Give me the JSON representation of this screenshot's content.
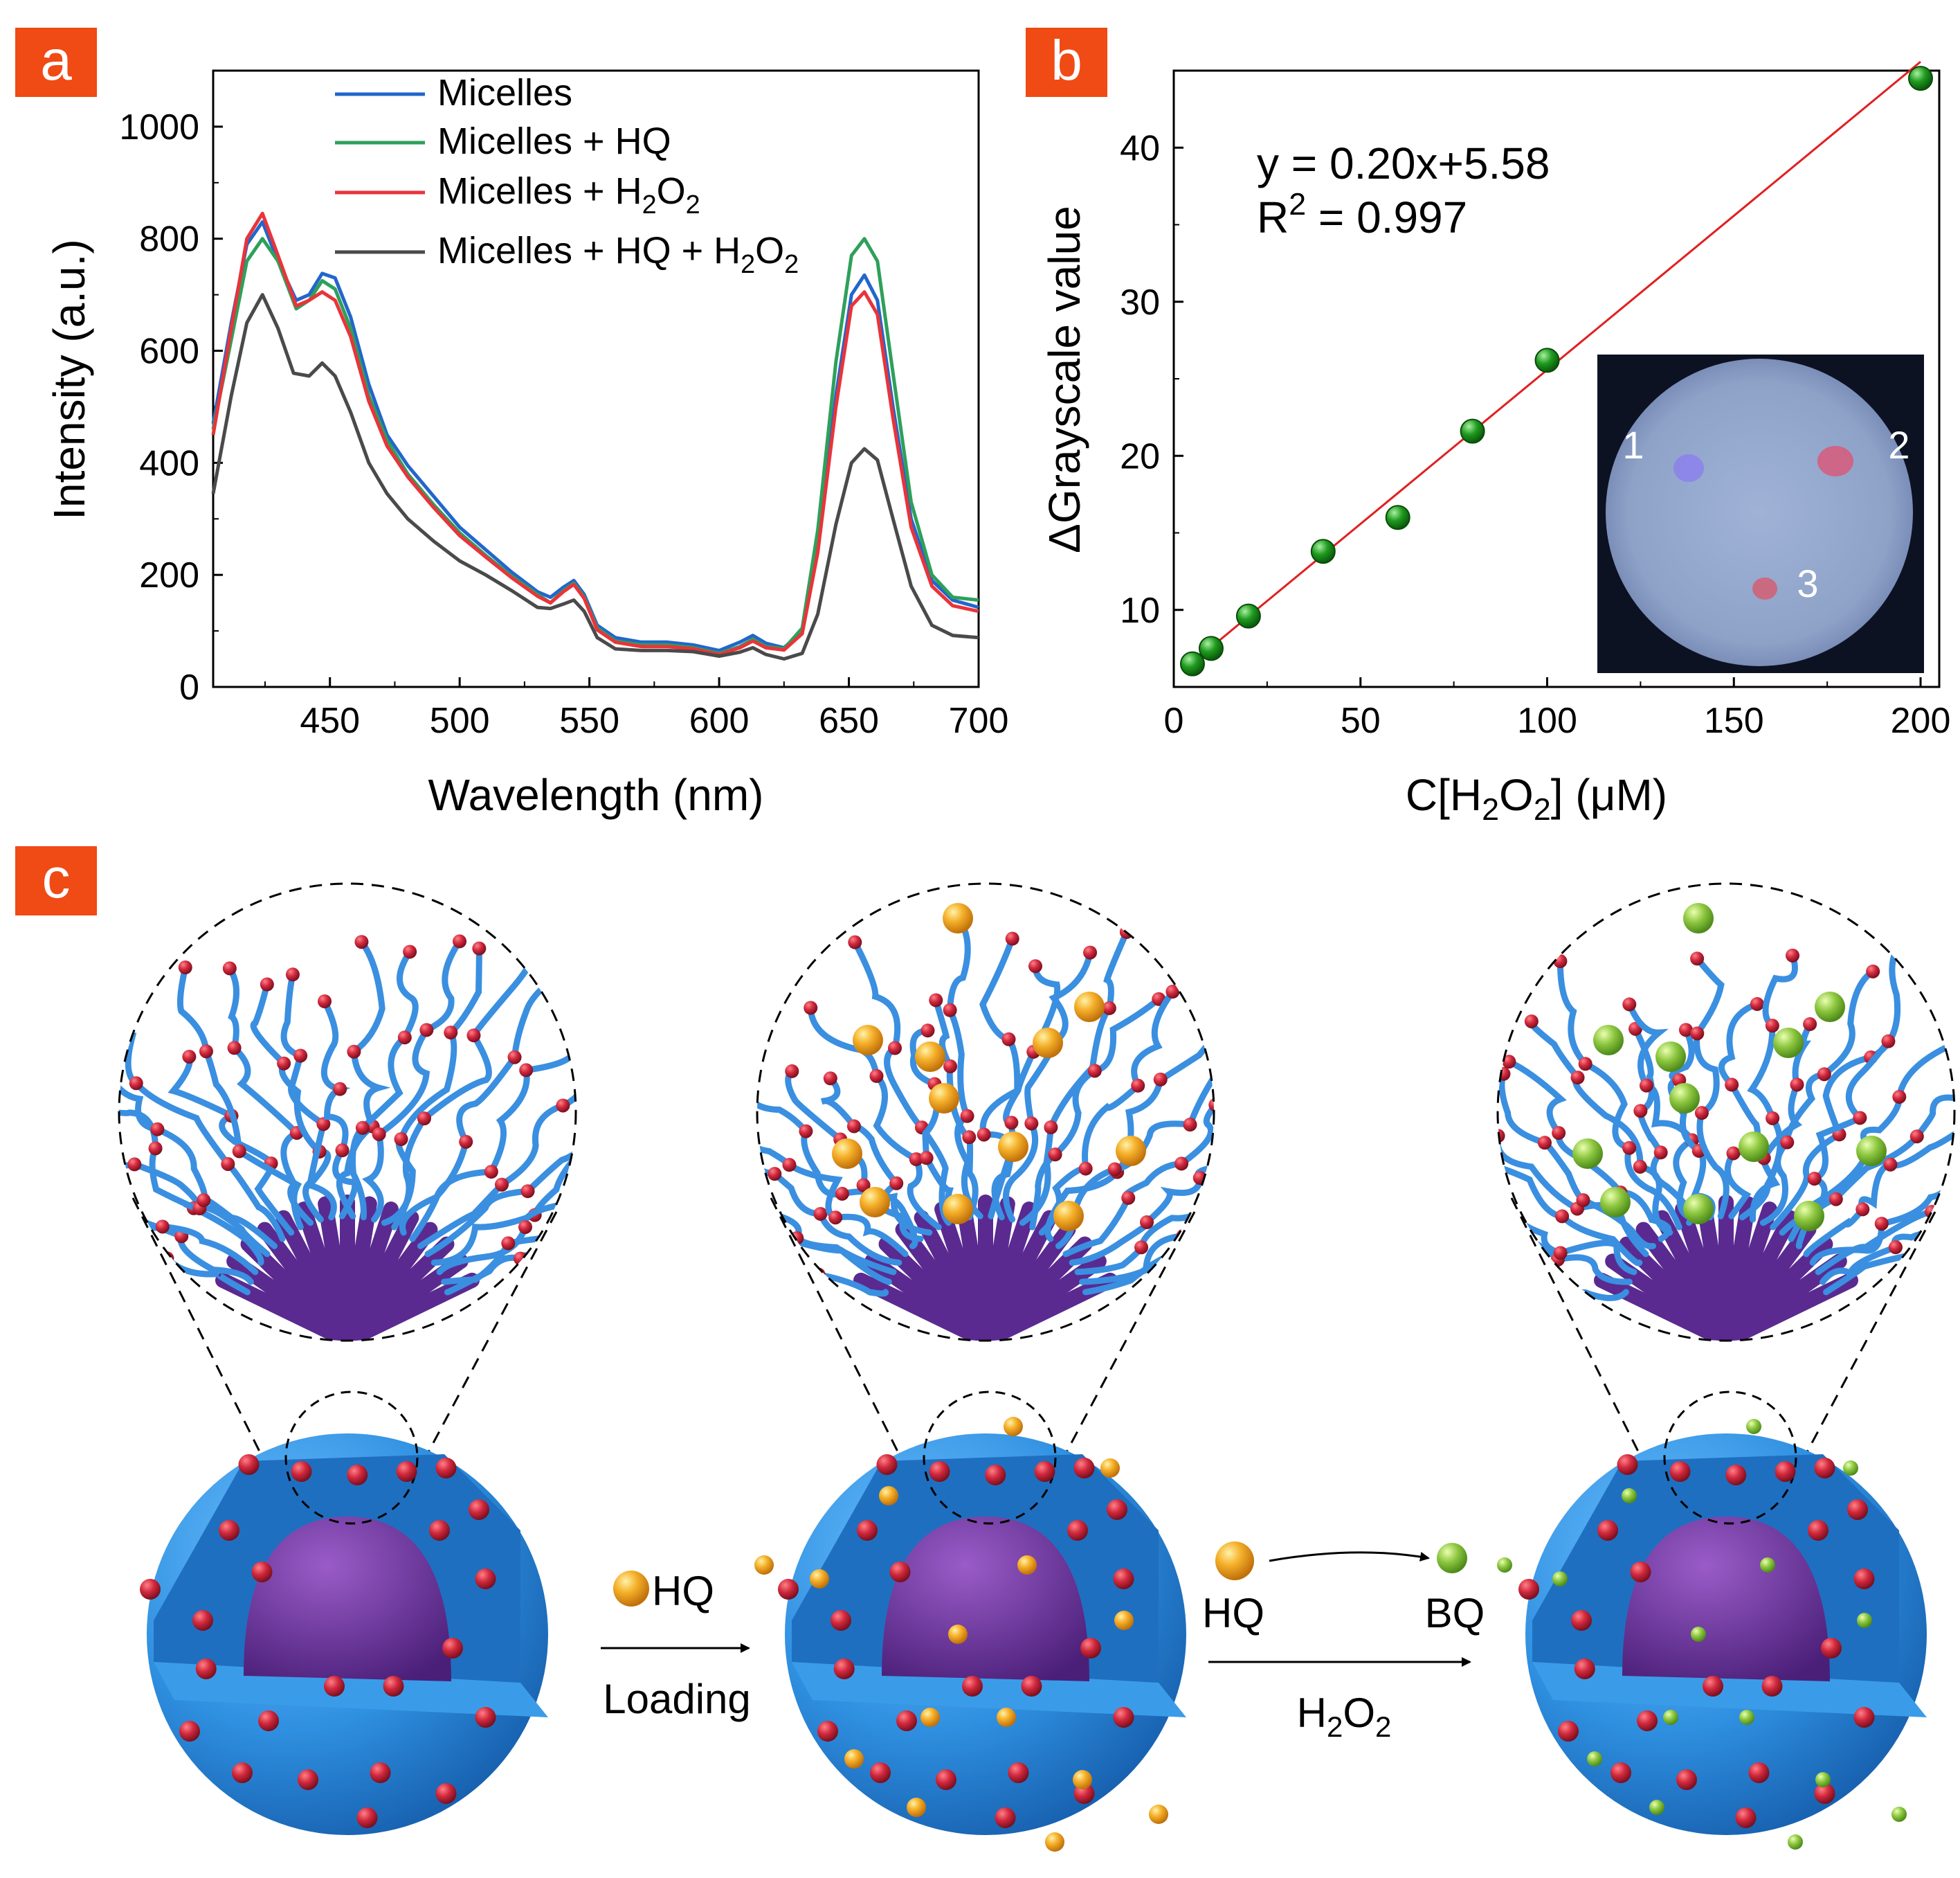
{
  "panels": {
    "a": {
      "label": "a"
    },
    "b": {
      "label": "b"
    },
    "c": {
      "label": "c"
    }
  },
  "colors": {
    "badge": "#f04a15",
    "micelles": "#2266cc",
    "micelles_hq": "#2ea05a",
    "micelles_h2o2": "#e8343a",
    "micelles_hq_h2o2": "#4a4a4a",
    "shell": "#2f8fe0",
    "core": "#6a2f9a",
    "chain": "#3a8fe0",
    "bead": "#c8283c",
    "hq": "#f5a623",
    "bq": "#8cc63f",
    "fit_line": "#e02020",
    "point": "#1a9a1a"
  },
  "chart_data": [
    {
      "type": "line",
      "panel": "a",
      "xlabel": "Wavelength (nm)",
      "ylabel": "Intensity (a.u.)",
      "xlim": [
        405,
        700
      ],
      "ylim": [
        0,
        1100
      ],
      "xticks": [
        450,
        500,
        550,
        600,
        650,
        700
      ],
      "yticks": [
        0,
        200,
        400,
        600,
        800,
        1000
      ],
      "legend": "top-center",
      "series": [
        {
          "name": "Micelles",
          "colorKey": "micelles",
          "points": [
            [
              405,
              470
            ],
            [
              412,
              650
            ],
            [
              418,
              790
            ],
            [
              424,
              830
            ],
            [
              430,
              760
            ],
            [
              437,
              690
            ],
            [
              442,
              700
            ],
            [
              447,
              738
            ],
            [
              452,
              730
            ],
            [
              458,
              660
            ],
            [
              465,
              540
            ],
            [
              472,
              450
            ],
            [
              480,
              395
            ],
            [
              490,
              340
            ],
            [
              500,
              285
            ],
            [
              510,
              245
            ],
            [
              520,
              205
            ],
            [
              530,
              170
            ],
            [
              535,
              160
            ],
            [
              540,
              178
            ],
            [
              544,
              190
            ],
            [
              548,
              165
            ],
            [
              553,
              110
            ],
            [
              560,
              88
            ],
            [
              570,
              80
            ],
            [
              580,
              80
            ],
            [
              590,
              75
            ],
            [
              600,
              65
            ],
            [
              608,
              80
            ],
            [
              613,
              92
            ],
            [
              618,
              78
            ],
            [
              625,
              70
            ],
            [
              632,
              100
            ],
            [
              638,
              250
            ],
            [
              645,
              520
            ],
            [
              651,
              700
            ],
            [
              656,
              735
            ],
            [
              661,
              690
            ],
            [
              667,
              500
            ],
            [
              674,
              300
            ],
            [
              682,
              190
            ],
            [
              690,
              155
            ],
            [
              700,
              142
            ]
          ]
        },
        {
          "name": "Micelles + HQ",
          "colorKey": "micelles_hq",
          "points": [
            [
              405,
              460
            ],
            [
              412,
              620
            ],
            [
              418,
              760
            ],
            [
              424,
              800
            ],
            [
              430,
              760
            ],
            [
              437,
              675
            ],
            [
              442,
              690
            ],
            [
              447,
              725
            ],
            [
              452,
              710
            ],
            [
              458,
              640
            ],
            [
              465,
              520
            ],
            [
              472,
              440
            ],
            [
              480,
              380
            ],
            [
              490,
              325
            ],
            [
              500,
              275
            ],
            [
              510,
              235
            ],
            [
              520,
              198
            ],
            [
              530,
              165
            ],
            [
              535,
              150
            ],
            [
              540,
              172
            ],
            [
              544,
              185
            ],
            [
              548,
              160
            ],
            [
              553,
              105
            ],
            [
              560,
              82
            ],
            [
              570,
              75
            ],
            [
              580,
              75
            ],
            [
              590,
              70
            ],
            [
              600,
              60
            ],
            [
              608,
              72
            ],
            [
              613,
              85
            ],
            [
              618,
              72
            ],
            [
              625,
              68
            ],
            [
              632,
              105
            ],
            [
              638,
              280
            ],
            [
              645,
              580
            ],
            [
              651,
              770
            ],
            [
              656,
              800
            ],
            [
              661,
              760
            ],
            [
              667,
              560
            ],
            [
              674,
              330
            ],
            [
              682,
              200
            ],
            [
              690,
              160
            ],
            [
              700,
              155
            ]
          ]
        },
        {
          "name": "Micelles + H<sub>2</sub>O<sub>2</sub>",
          "colorKey": "micelles_h2o2",
          "points": [
            [
              405,
              450
            ],
            [
              412,
              640
            ],
            [
              418,
              800
            ],
            [
              424,
              845
            ],
            [
              430,
              770
            ],
            [
              437,
              680
            ],
            [
              442,
              690
            ],
            [
              447,
              705
            ],
            [
              452,
              690
            ],
            [
              458,
              625
            ],
            [
              465,
              510
            ],
            [
              472,
              430
            ],
            [
              480,
              375
            ],
            [
              490,
              320
            ],
            [
              500,
              270
            ],
            [
              510,
              232
            ],
            [
              520,
              195
            ],
            [
              530,
              162
            ],
            [
              535,
              150
            ],
            [
              540,
              170
            ],
            [
              544,
              183
            ],
            [
              548,
              158
            ],
            [
              553,
              102
            ],
            [
              560,
              80
            ],
            [
              570,
              72
            ],
            [
              580,
              72
            ],
            [
              590,
              68
            ],
            [
              600,
              58
            ],
            [
              608,
              70
            ],
            [
              613,
              82
            ],
            [
              618,
              70
            ],
            [
              625,
              66
            ],
            [
              632,
              95
            ],
            [
              638,
              240
            ],
            [
              645,
              500
            ],
            [
              651,
              680
            ],
            [
              656,
              705
            ],
            [
              661,
              665
            ],
            [
              667,
              480
            ],
            [
              674,
              285
            ],
            [
              682,
              180
            ],
            [
              690,
              145
            ],
            [
              700,
              135
            ]
          ]
        },
        {
          "name": "Micelles + HQ + H<sub>2</sub>O<sub>2</sub>",
          "colorKey": "micelles_hq_h2o2",
          "points": [
            [
              405,
              345
            ],
            [
              412,
              520
            ],
            [
              418,
              650
            ],
            [
              424,
              700
            ],
            [
              430,
              640
            ],
            [
              436,
              560
            ],
            [
              442,
              555
            ],
            [
              447,
              578
            ],
            [
              452,
              555
            ],
            [
              458,
              490
            ],
            [
              465,
              400
            ],
            [
              472,
              345
            ],
            [
              480,
              300
            ],
            [
              490,
              260
            ],
            [
              500,
              225
            ],
            [
              510,
              200
            ],
            [
              520,
              172
            ],
            [
              530,
              142
            ],
            [
              535,
              140
            ],
            [
              540,
              148
            ],
            [
              544,
              155
            ],
            [
              548,
              135
            ],
            [
              553,
              88
            ],
            [
              560,
              68
            ],
            [
              570,
              65
            ],
            [
              580,
              65
            ],
            [
              590,
              63
            ],
            [
              600,
              55
            ],
            [
              608,
              62
            ],
            [
              613,
              70
            ],
            [
              618,
              58
            ],
            [
              625,
              50
            ],
            [
              632,
              60
            ],
            [
              638,
              130
            ],
            [
              645,
              290
            ],
            [
              651,
              400
            ],
            [
              656,
              425
            ],
            [
              661,
              405
            ],
            [
              667,
              300
            ],
            [
              674,
              180
            ],
            [
              682,
              110
            ],
            [
              690,
              92
            ],
            [
              700,
              88
            ]
          ]
        }
      ]
    },
    {
      "type": "scatter",
      "panel": "b",
      "xlabel": "C[H<sub>2</sub>O<sub>2</sub>] (μM)",
      "ylabel": "ΔGrayscale value",
      "xlim": [
        0,
        205
      ],
      "ylim": [
        5,
        45
      ],
      "xticks": [
        0,
        50,
        100,
        150,
        200
      ],
      "yticks": [
        10,
        20,
        30,
        40
      ],
      "points": [
        [
          5,
          6.5
        ],
        [
          10,
          7.5
        ],
        [
          20,
          9.6
        ],
        [
          40,
          13.8
        ],
        [
          60,
          16
        ],
        [
          80,
          21.6
        ],
        [
          100,
          26.2
        ],
        [
          200,
          44.5
        ]
      ],
      "fit": {
        "slope": 0.2,
        "intercept": 5.58
      },
      "equation": "y = 0.20x+5.58",
      "r2": "R<sup>2</sup> = 0.997",
      "inset_labels": [
        "1",
        "2",
        "3"
      ]
    }
  ],
  "scheme": {
    "hq_legend": "HQ",
    "loading_label": "Loading",
    "reaction_from": "HQ",
    "reaction_to": "BQ",
    "reaction_condition": "H<sub>2</sub>O<sub>2</sub>"
  }
}
